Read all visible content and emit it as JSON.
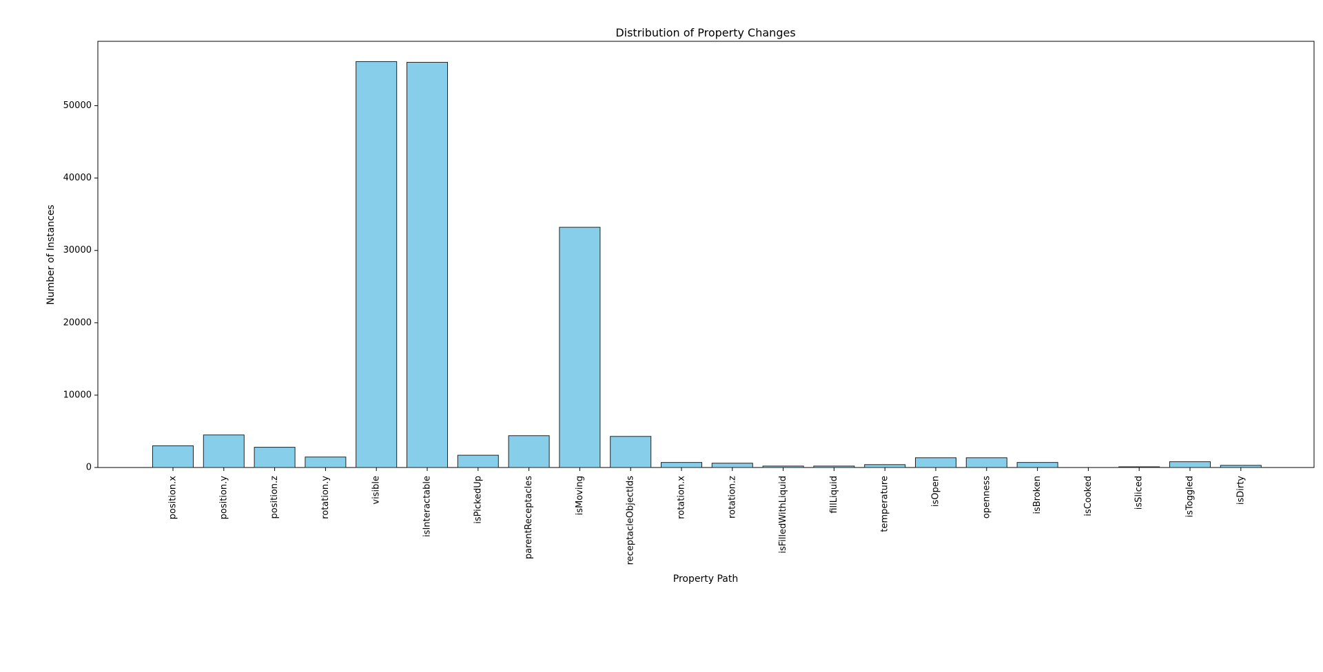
{
  "chart_data": {
    "type": "bar",
    "title": "Distribution of Property Changes",
    "xlabel": "Property Path",
    "ylabel": "Number of Instances",
    "categories": [
      "position.x",
      "position.y",
      "position.z",
      "rotation.y",
      "visible",
      "isInteractable",
      "isPickedUp",
      "parentReceptacles",
      "isMoving",
      "receptacleObjectIds",
      "rotation.x",
      "rotation.z",
      "isFilledWithLiquid",
      "fillLiquid",
      "temperature",
      "isOpen",
      "openness",
      "isBroken",
      "isCooked",
      "isSliced",
      "isToggled",
      "isDirty"
    ],
    "values": [
      3000,
      4500,
      2800,
      1450,
      56100,
      56000,
      1700,
      4400,
      33200,
      4300,
      700,
      600,
      200,
      200,
      400,
      1350,
      1350,
      700,
      0,
      100,
      800,
      300
    ],
    "ylim": [
      0,
      58900
    ],
    "yticks": [
      0,
      10000,
      20000,
      30000,
      40000,
      50000
    ],
    "colors": {
      "bar_fill": "#87ceeb",
      "bar_edge": "#222222"
    },
    "grid": false,
    "legend": "none"
  }
}
